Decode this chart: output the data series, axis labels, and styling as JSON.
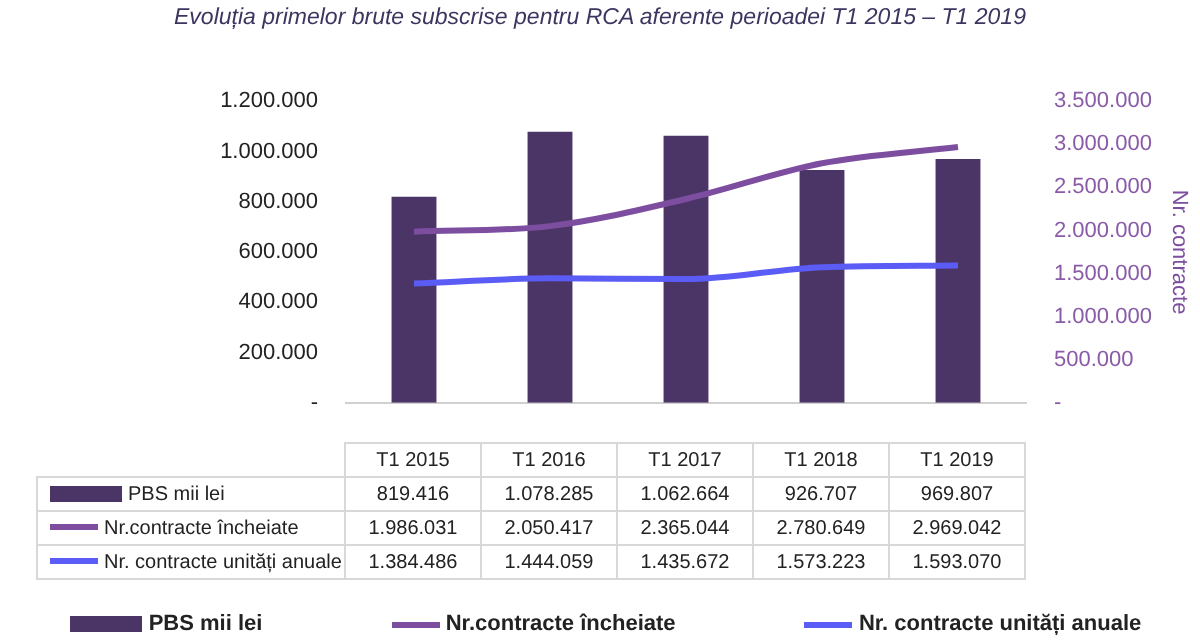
{
  "chart_data": {
    "type": "bar",
    "title": "Evoluția primelor brute subscrise pentru RCA aferente perioadei T1 2015 – T1 2019",
    "y2label": "Nr. contracte",
    "categories": [
      "T1 2015",
      "T1 2016",
      "T1 2017",
      "T1 2018",
      "T1 2019"
    ],
    "series": [
      {
        "name": "PBS mii lei",
        "color": "#4a3566",
        "values": [
          819416,
          1078285,
          1062664,
          926707,
          969807
        ],
        "value_labels": [
          "819.416",
          "1.078.285",
          "1.062.664",
          "926.707",
          "969.807"
        ]
      },
      {
        "name": "Nr.contracte încheiate",
        "type": "line",
        "axis": "y2",
        "color": "#7d4ea0",
        "values": [
          1986031,
          2050417,
          2365044,
          2780649,
          2969042
        ],
        "value_labels": [
          "1.986.031",
          "2.050.417",
          "2.365.044",
          "2.780.649",
          "2.969.042"
        ]
      },
      {
        "name": "Nr. contracte unități anuale",
        "type": "line",
        "axis": "y2",
        "color": "#5b5bf5",
        "values": [
          1384486,
          1444059,
          1435672,
          1573223,
          1593070
        ],
        "value_labels": [
          "1.384.486",
          "1.444.059",
          "1.435.672",
          "1.573.223",
          "1.593.070"
        ]
      }
    ],
    "ylim": [
      0,
      1200000
    ],
    "yticks": [
      {
        "value": 0,
        "label": "-"
      },
      {
        "value": 200000,
        "label": "200.000"
      },
      {
        "value": 400000,
        "label": "400.000"
      },
      {
        "value": 600000,
        "label": "600.000"
      },
      {
        "value": 800000,
        "label": "800.000"
      },
      {
        "value": 1000000,
        "label": "1.000.000"
      },
      {
        "value": 1200000,
        "label": "1.200.000"
      }
    ],
    "y2lim": [
      0,
      3500000
    ],
    "y2ticks": [
      {
        "value": 0,
        "label": "-"
      },
      {
        "value": 500000,
        "label": "500.000"
      },
      {
        "value": 1000000,
        "label": "1.000.000"
      },
      {
        "value": 1500000,
        "label": "1.500.000"
      },
      {
        "value": 2000000,
        "label": "2.000.000"
      },
      {
        "value": 2500000,
        "label": "2.500.000"
      },
      {
        "value": 3000000,
        "label": "3.000.000"
      },
      {
        "value": 3500000,
        "label": "3.500.000"
      }
    ],
    "grid": false,
    "legend": "bottom",
    "marker": "none",
    "line_style": "solid"
  }
}
